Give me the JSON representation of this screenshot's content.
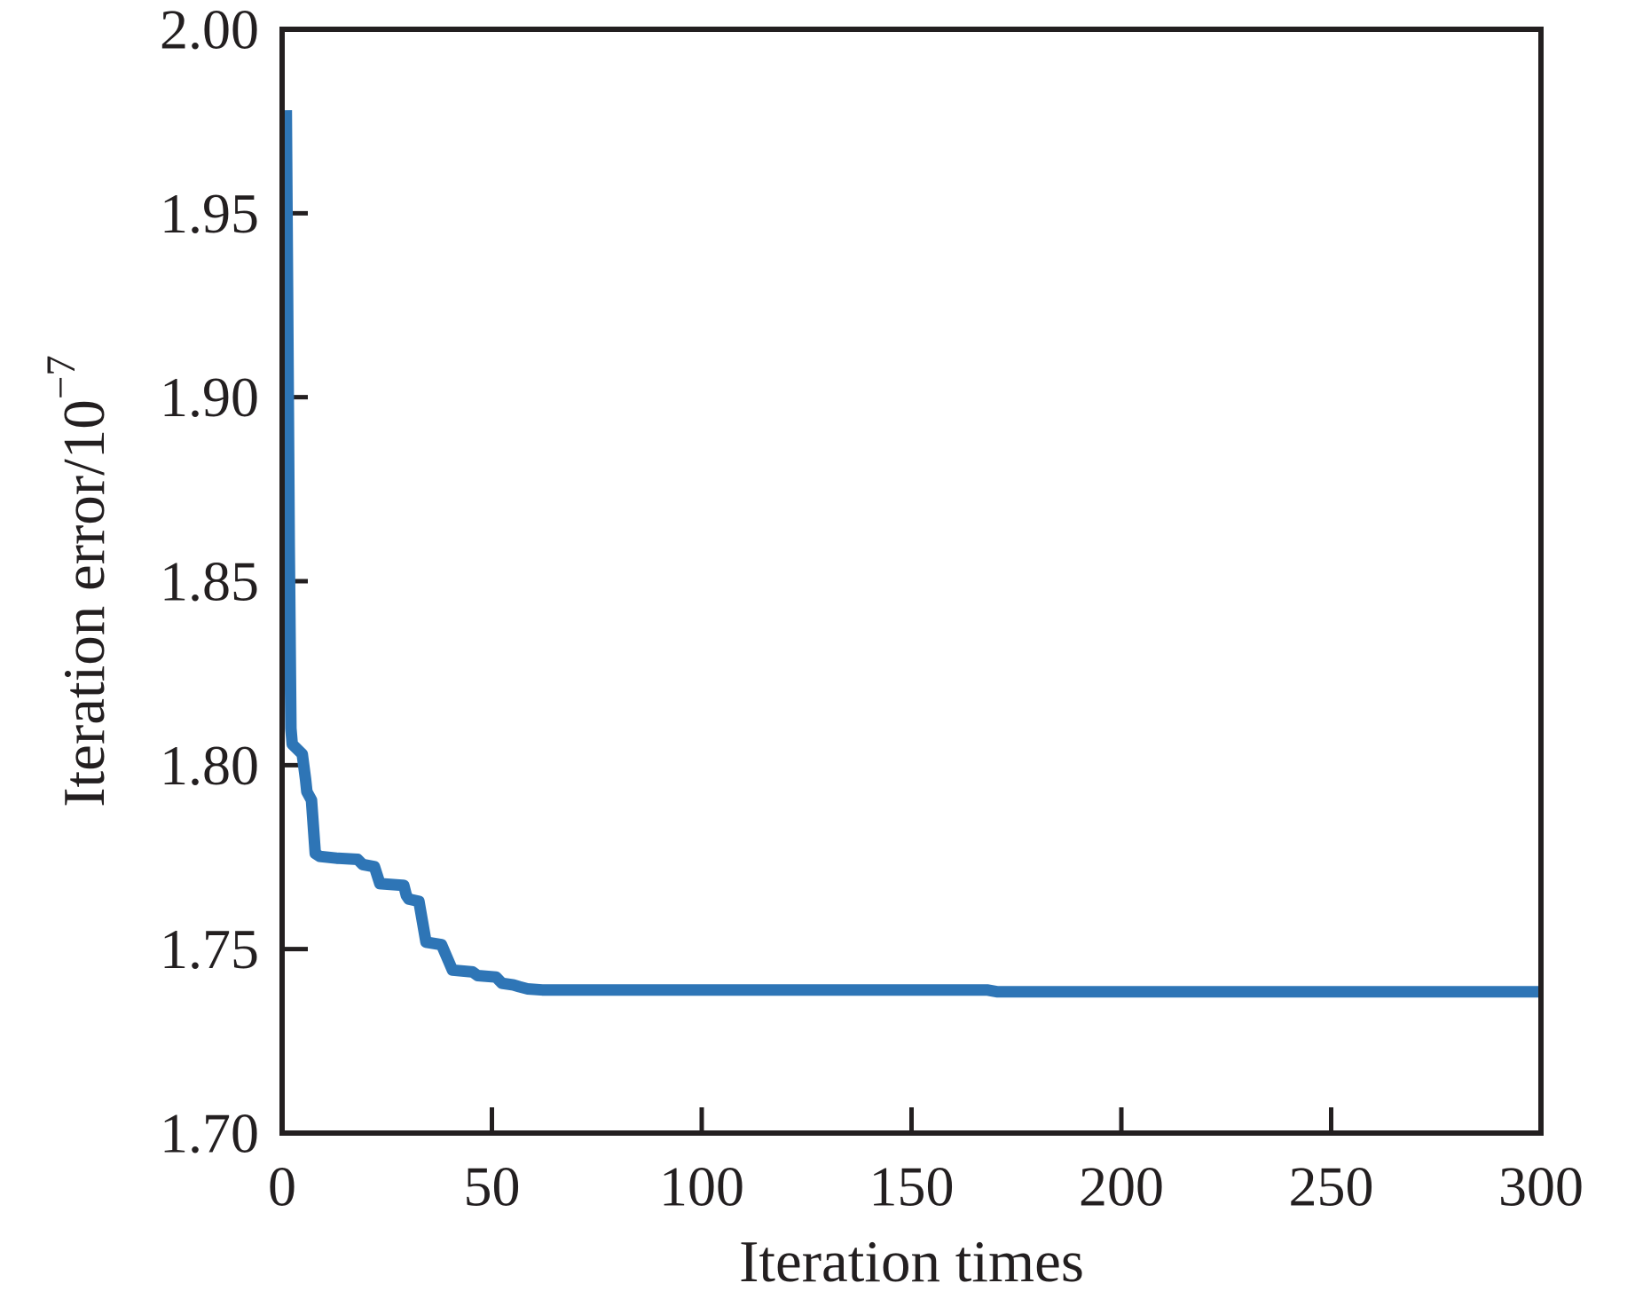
{
  "chart_data": {
    "type": "line",
    "title": "",
    "xlabel": "Iteration times",
    "ylabel_base": "Iteration error/10",
    "ylabel_superscript": "−7",
    "xlim": [
      0,
      300
    ],
    "ylim": [
      1.7,
      2.0
    ],
    "x_ticks": [
      0,
      50,
      100,
      150,
      200,
      250,
      300
    ],
    "x_tick_labels": [
      "0",
      "50",
      "100",
      "150",
      "200",
      "250",
      "300"
    ],
    "y_ticks": [
      1.7,
      1.75,
      1.8,
      1.85,
      1.9,
      1.95,
      2.0
    ],
    "y_tick_labels": [
      "1.70",
      "1.75",
      "1.80",
      "1.85",
      "1.90",
      "1.95",
      "2.00"
    ],
    "grid": false,
    "legend": null,
    "tick_direction": "in",
    "series": [
      {
        "name": "iteration-error",
        "color": "#2e75b6",
        "points": [
          [
            1.0,
            1.978
          ],
          [
            1.3,
            1.93
          ],
          [
            1.7,
            1.86
          ],
          [
            2.1,
            1.81
          ],
          [
            2.4,
            1.8057
          ],
          [
            4.8,
            1.803
          ],
          [
            5.6,
            1.796
          ],
          [
            5.9,
            1.7928
          ],
          [
            7.0,
            1.7905
          ],
          [
            7.9,
            1.776
          ],
          [
            9.0,
            1.7752
          ],
          [
            13.0,
            1.7747
          ],
          [
            18.0,
            1.7744
          ],
          [
            19.2,
            1.773
          ],
          [
            22.0,
            1.7724
          ],
          [
            23.3,
            1.7678
          ],
          [
            29.0,
            1.7673
          ],
          [
            29.6,
            1.7646
          ],
          [
            30.2,
            1.7636
          ],
          [
            32.6,
            1.763
          ],
          [
            34.3,
            1.7519
          ],
          [
            38.0,
            1.7512
          ],
          [
            39.2,
            1.748
          ],
          [
            40.6,
            1.7443
          ],
          [
            45.4,
            1.7438
          ],
          [
            46.6,
            1.7428
          ],
          [
            51.0,
            1.7424
          ],
          [
            52.4,
            1.7407
          ],
          [
            55.0,
            1.7403
          ],
          [
            56.5,
            1.7398
          ],
          [
            58.5,
            1.7392
          ],
          [
            62.0,
            1.7389
          ],
          [
            168.0,
            1.7389
          ],
          [
            170.5,
            1.7384
          ],
          [
            300.0,
            1.7384
          ]
        ]
      }
    ]
  },
  "colors": {
    "axis": "#231f20",
    "text": "#231f20",
    "background": "#ffffff",
    "line": "#2e75b6"
  }
}
